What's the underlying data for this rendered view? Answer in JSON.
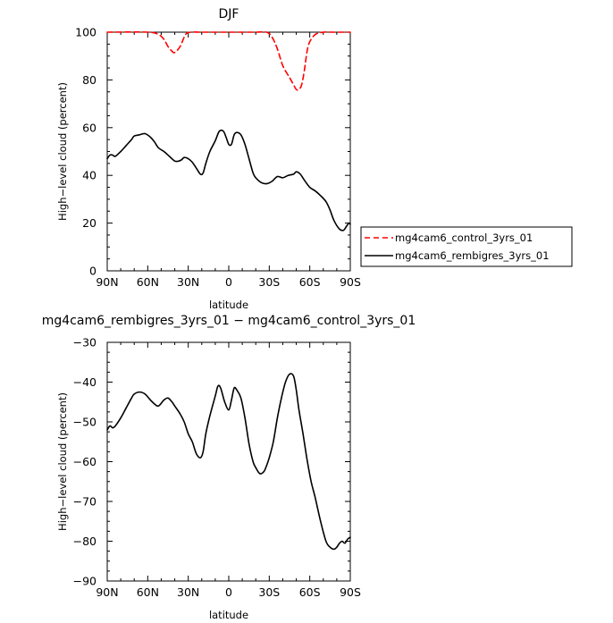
{
  "chart_data": [
    {
      "type": "line",
      "title": "DJF",
      "xlabel": "latitude",
      "ylabel": "High-level cloud (percent)",
      "xlim": [
        90,
        -90
      ],
      "ylim": [
        0,
        100
      ],
      "xticks": [
        90,
        60,
        30,
        0,
        -30,
        -60,
        -90
      ],
      "xtick_labels": [
        "90N",
        "60N",
        "30N",
        "0",
        "30S",
        "60S",
        "90S"
      ],
      "yticks": [
        0,
        20,
        40,
        60,
        80,
        100
      ],
      "ytick_labels": [
        "0",
        "20",
        "40",
        "60",
        "80",
        "100"
      ],
      "grid": false,
      "legend": "right",
      "series": [
        {
          "name": "mg4cam6_control_3yrs_01",
          "color": "#ff0000",
          "dash": "dashed",
          "x": [
            90,
            60,
            52,
            48,
            45,
            42,
            40,
            36,
            32,
            28,
            20,
            10,
            0,
            -10,
            -20,
            -28,
            -32,
            -36,
            -40,
            -45,
            -48,
            -50,
            -52,
            -54,
            -56,
            -58,
            -60,
            -64,
            -70,
            -76,
            -80,
            -85,
            -90
          ],
          "y": [
            100,
            100,
            99,
            97,
            94,
            92,
            91.5,
            94,
            99,
            100,
            100,
            100,
            100,
            100,
            100,
            100,
            98,
            93,
            86,
            81,
            78,
            76,
            76,
            78,
            84,
            92,
            96,
            99,
            100,
            100,
            100,
            100,
            100
          ]
        },
        {
          "name": "mg4cam6_rembigres_3yrs_01",
          "color": "#000000",
          "dash": "solid",
          "x": [
            90,
            88,
            86,
            84,
            80,
            76,
            72,
            70,
            66,
            62,
            58,
            55,
            52,
            48,
            44,
            40,
            37,
            35,
            33,
            30,
            27,
            24,
            21,
            19,
            17,
            14,
            10,
            7,
            4,
            2,
            0,
            -2,
            -4,
            -6,
            -9,
            -12,
            -15,
            -18,
            -20,
            -24,
            -28,
            -32,
            -36,
            -40,
            -44,
            -48,
            -50,
            -53,
            -56,
            -60,
            -64,
            -68,
            -72,
            -75,
            -78,
            -82,
            -85,
            -87,
            -89,
            -90
          ],
          "y": [
            47,
            48.5,
            48.5,
            48,
            50,
            52.5,
            55,
            56.5,
            57,
            57.5,
            56,
            54,
            51.5,
            50,
            48,
            46,
            46,
            46.5,
            47.5,
            47,
            45.5,
            43,
            40.5,
            41,
            45,
            50,
            54.5,
            58.5,
            58.5,
            56,
            53,
            53,
            57,
            58,
            57,
            53,
            47,
            41,
            39,
            37,
            36.5,
            37.5,
            39.5,
            39,
            40,
            40.5,
            41.5,
            40.5,
            38,
            35,
            33.5,
            31.5,
            29,
            25.5,
            21,
            17.5,
            17,
            18.5,
            20,
            19.5
          ]
        }
      ]
    },
    {
      "type": "line",
      "title": "mg4cam6_rembigres_3yrs_01 - mg4cam6_control_3yrs_01",
      "xlabel": "latitude",
      "ylabel": "High-level cloud (percent)",
      "xlim": [
        90,
        -90
      ],
      "ylim": [
        -90,
        -30
      ],
      "xticks": [
        90,
        60,
        30,
        0,
        -30,
        -60,
        -90
      ],
      "xtick_labels": [
        "90N",
        "60N",
        "30N",
        "0",
        "30S",
        "60S",
        "90S"
      ],
      "yticks": [
        -90,
        -80,
        -70,
        -60,
        -50,
        -40,
        -30
      ],
      "ytick_labels": [
        "-90",
        "-80",
        "-70",
        "-60",
        "-50",
        "-40",
        "-30"
      ],
      "grid": false,
      "legend": "none",
      "series": [
        {
          "color": "#000000",
          "dash": "solid",
          "x": [
            90,
            88,
            86,
            84,
            80,
            76,
            72,
            70,
            66,
            62,
            58,
            55,
            52,
            48,
            45,
            42,
            40,
            36,
            33,
            30,
            27,
            24,
            21,
            19,
            17,
            14,
            10,
            8,
            6,
            3,
            0,
            -2,
            -4,
            -6,
            -9,
            -12,
            -15,
            -18,
            -20,
            -23,
            -26,
            -28,
            -30,
            -33,
            -36,
            -39,
            -42,
            -45,
            -48,
            -50,
            -52,
            -55,
            -58,
            -61,
            -64,
            -68,
            -72,
            -75,
            -78,
            -80,
            -82,
            -84,
            -86,
            -88,
            -90
          ],
          "y": [
            -52,
            -51,
            -51.5,
            -51,
            -49,
            -46.5,
            -44,
            -43,
            -42.5,
            -43,
            -44.5,
            -45.5,
            -46,
            -44.5,
            -44,
            -45,
            -46,
            -48,
            -50,
            -53,
            -55,
            -58,
            -59,
            -57.5,
            -53,
            -48.5,
            -43.5,
            -41,
            -41.5,
            -45,
            -47,
            -44.5,
            -41.5,
            -42,
            -44,
            -49,
            -55.5,
            -60,
            -61.5,
            -63,
            -62.5,
            -61,
            -59,
            -55,
            -49,
            -44,
            -40,
            -38,
            -38.5,
            -42,
            -47,
            -53,
            -59.5,
            -65,
            -69,
            -75,
            -80,
            -81.5,
            -82,
            -81.5,
            -80.5,
            -80,
            -80.5,
            -79.5,
            -79
          ]
        }
      ]
    }
  ]
}
